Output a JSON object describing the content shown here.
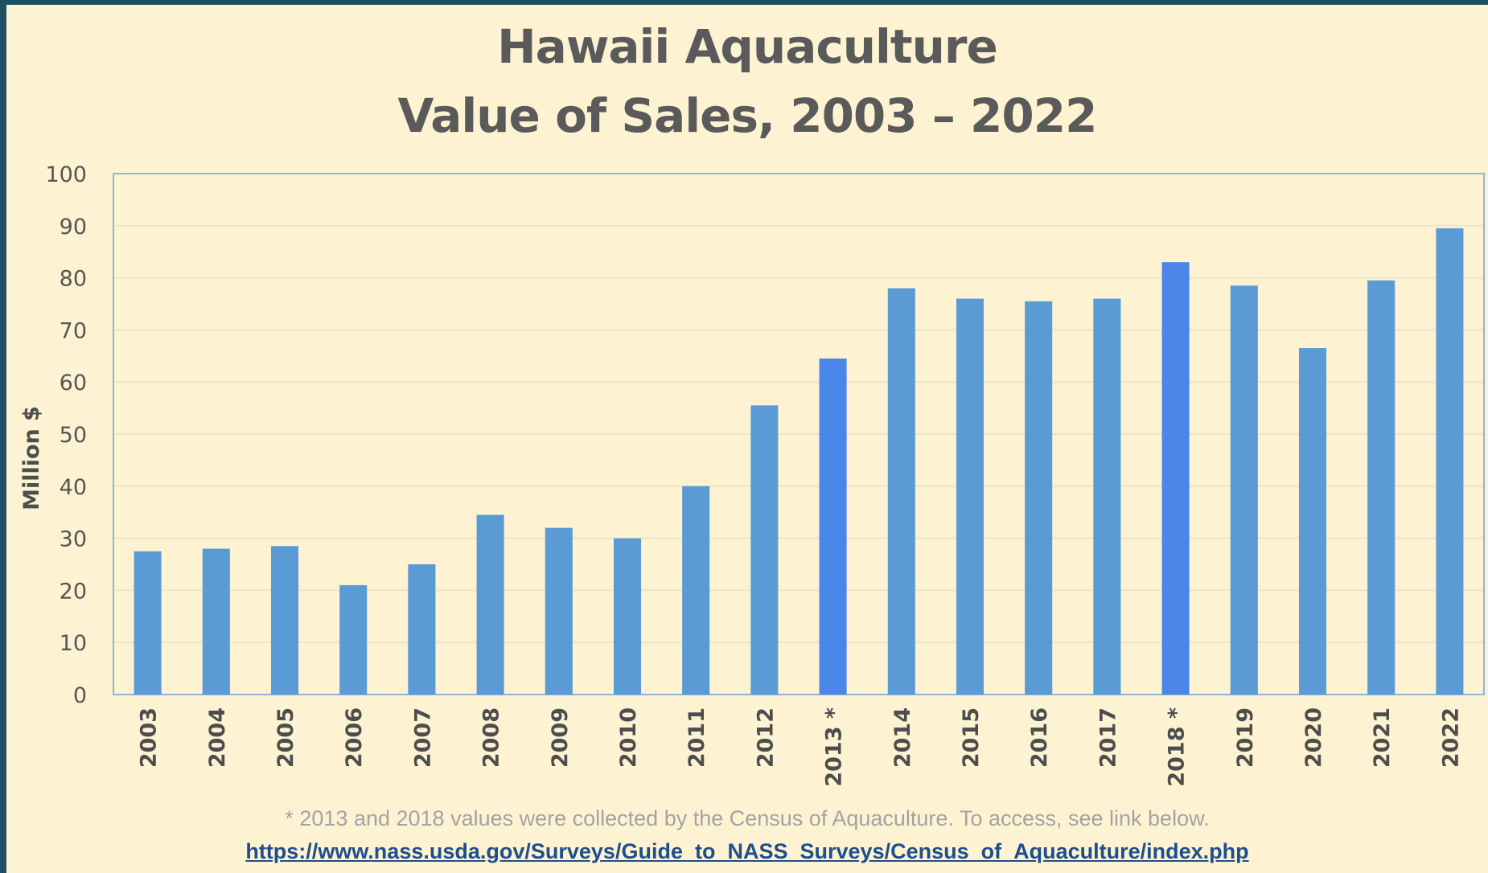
{
  "chart_data": {
    "type": "bar",
    "title": "Hawaii Aquaculture",
    "subtitle": "Value of Sales, 2003 – 2022",
    "ylabel": "Million $",
    "xlabel": "",
    "ylim": [
      0,
      100
    ],
    "yticks": [
      0,
      10,
      20,
      30,
      40,
      50,
      60,
      70,
      80,
      90,
      100
    ],
    "grid": true,
    "categories": [
      "2003",
      "2004",
      "2005",
      "2006",
      "2007",
      "2008",
      "2009",
      "2010",
      "2011",
      "2012",
      "2013 *",
      "2014",
      "2015",
      "2016",
      "2017",
      "2018 *",
      "2019",
      "2020",
      "2021",
      "2022"
    ],
    "values": [
      27.5,
      28,
      28.5,
      21,
      25,
      34.5,
      32,
      30,
      40,
      55.5,
      64.5,
      78,
      76,
      75.5,
      76,
      83,
      78.5,
      66.5,
      79.5,
      89.5
    ],
    "highlighted": [
      "2013 *",
      "2018 *"
    ],
    "colors": {
      "bar": "#5b9bd5",
      "highlight": "#4a86e8",
      "border": "#8fb4dc",
      "grid": "#ece4c6"
    }
  },
  "footnote": "* 2013 and 2018 values were collected by the Census of Aquaculture. To access, see link below.",
  "source_link": "https://www.nass.usda.gov/Surveys/Guide_to_NASS_Surveys/Census_of_Aquaculture/index.php"
}
